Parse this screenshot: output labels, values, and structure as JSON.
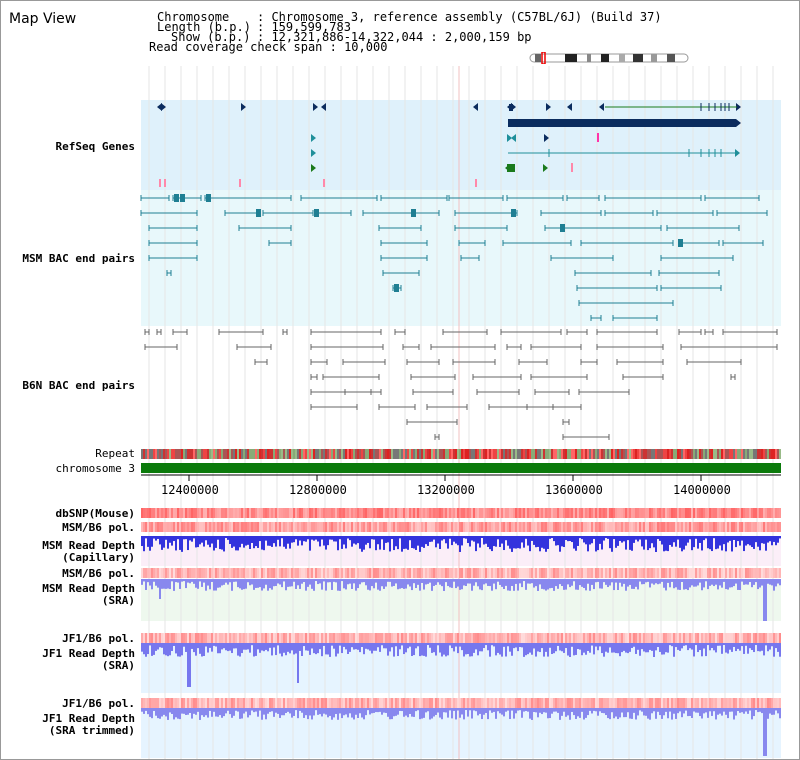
{
  "page": {
    "title": "Map View"
  },
  "info": {
    "chromosome_key": "Chromosome",
    "chromosome_val": ": Chromosome 3, reference assembly (C57BL/6J) (Build 37)",
    "length_key": "Length (b.p.)",
    "length_val": ": 159,599,783",
    "show_key": "Show (b.p.)",
    "show_val": ": 12,321,886-14,322,044 : 2,000,159 bp",
    "coverage_line": "Read coverage check span : 10,000"
  },
  "tracks": {
    "refseq": "RefSeq Genes",
    "msm_bac": "MSM BAC end pairs",
    "b6n_bac": "B6N BAC end pairs",
    "repeat": "Repeat",
    "chromosome": "chromosome 3",
    "dbsnp": "dbSNP(Mouse)",
    "msm_b6_pol": "MSM/B6 pol.",
    "msm_read_depth_cap_1": "MSM Read Depth",
    "msm_read_depth_cap_2": "(Capillary)",
    "msm_b6_pol_2": "MSM/B6 pol.",
    "msm_read_depth_sra_1": "MSM Read Depth",
    "msm_read_depth_sra_2": "(SRA)",
    "jf1_b6_pol": "JF1/B6 pol.",
    "jf1_read_depth_sra_1": "JF1 Read Depth",
    "jf1_read_depth_sra_2": "(SRA)",
    "jf1_b6_pol_2": "JF1/B6 pol.",
    "jf1_read_depth_trim_1": "JF1 Read Depth",
    "jf1_read_depth_trim_2": "(SRA trimmed)"
  },
  "axis": {
    "start": 12321886,
    "end": 14322044,
    "ticks": [
      "12400000",
      "12800000",
      "13200000",
      "13600000",
      "14000000"
    ]
  },
  "colors": {
    "refseq_bg": "#dff1fb",
    "refseq_label": "#1a5fa8",
    "msm_bg": "#e8f8fb",
    "msm_label": "#1a6f8a",
    "b6n_label": "#444444",
    "gene_dark": "#0b2c5e",
    "gene_teal": "#1f8f9a",
    "gene_green": "#1b7a1b",
    "bac_msm": "#1f7f93",
    "bac_b6n": "#666666",
    "chromosome_bar": "#0b7a0b",
    "depth_blue": "#2222dd",
    "depth_light": "#7777ee",
    "orange_label": "#dd8800",
    "blue_label": "#1a1aaa"
  }
}
